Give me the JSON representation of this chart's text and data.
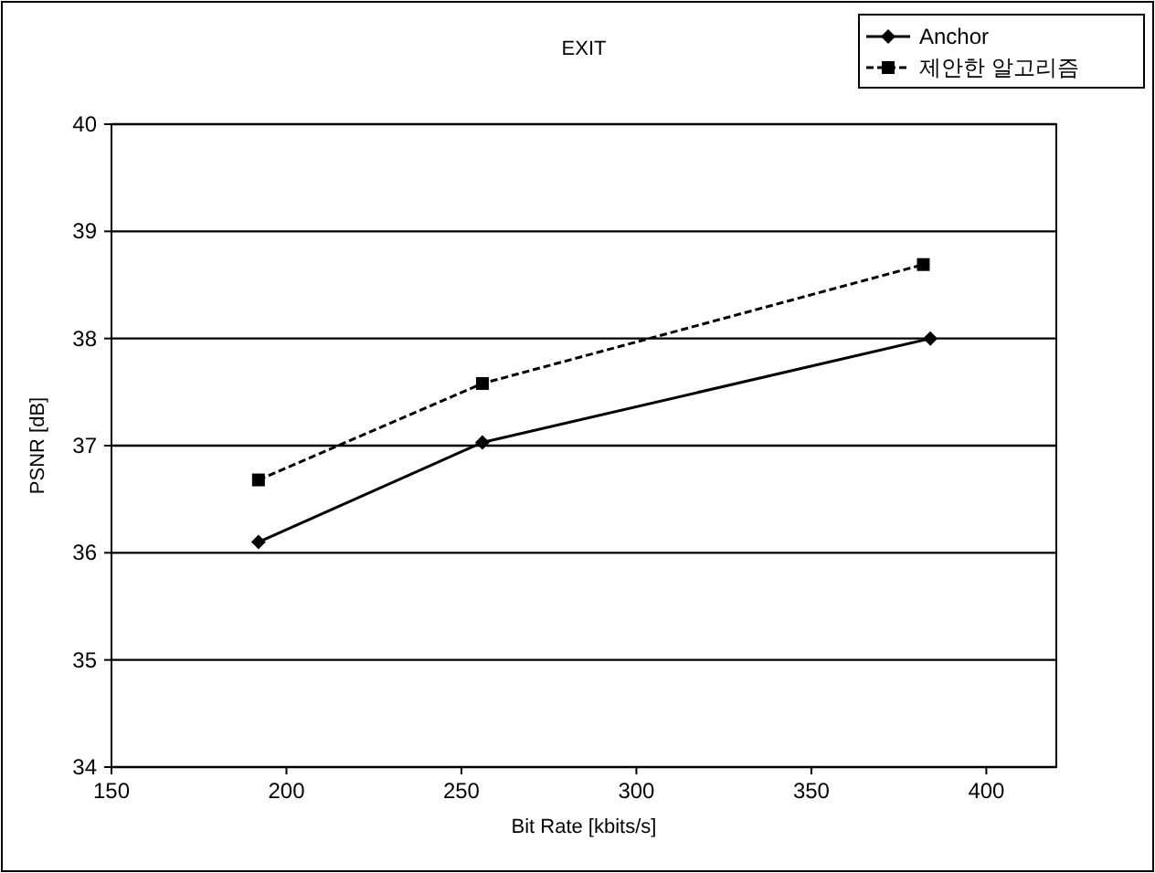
{
  "chart_data": {
    "type": "line",
    "title": "EXIT",
    "xlabel": "Bit Rate [kbits/s]",
    "ylabel": "PSNR [dB]",
    "xlim": [
      150,
      420
    ],
    "xticks": [
      150,
      200,
      250,
      300,
      350,
      400
    ],
    "ylim": [
      34,
      40
    ],
    "yticks": [
      34,
      35,
      36,
      37,
      38,
      39,
      40
    ],
    "grid": "y",
    "legend": "top right",
    "series": [
      {
        "name": "Anchor",
        "color": "#000000",
        "marker": "diamond",
        "line_style": "solid",
        "x": [
          192,
          256,
          384
        ],
        "values": [
          36.1,
          37.03,
          38.0
        ]
      },
      {
        "name": "제안한 알고리즘",
        "color": "#000000",
        "marker": "square",
        "line_style": "dashed",
        "x": [
          192,
          256,
          382
        ],
        "values": [
          36.68,
          37.58,
          38.69
        ]
      }
    ]
  }
}
